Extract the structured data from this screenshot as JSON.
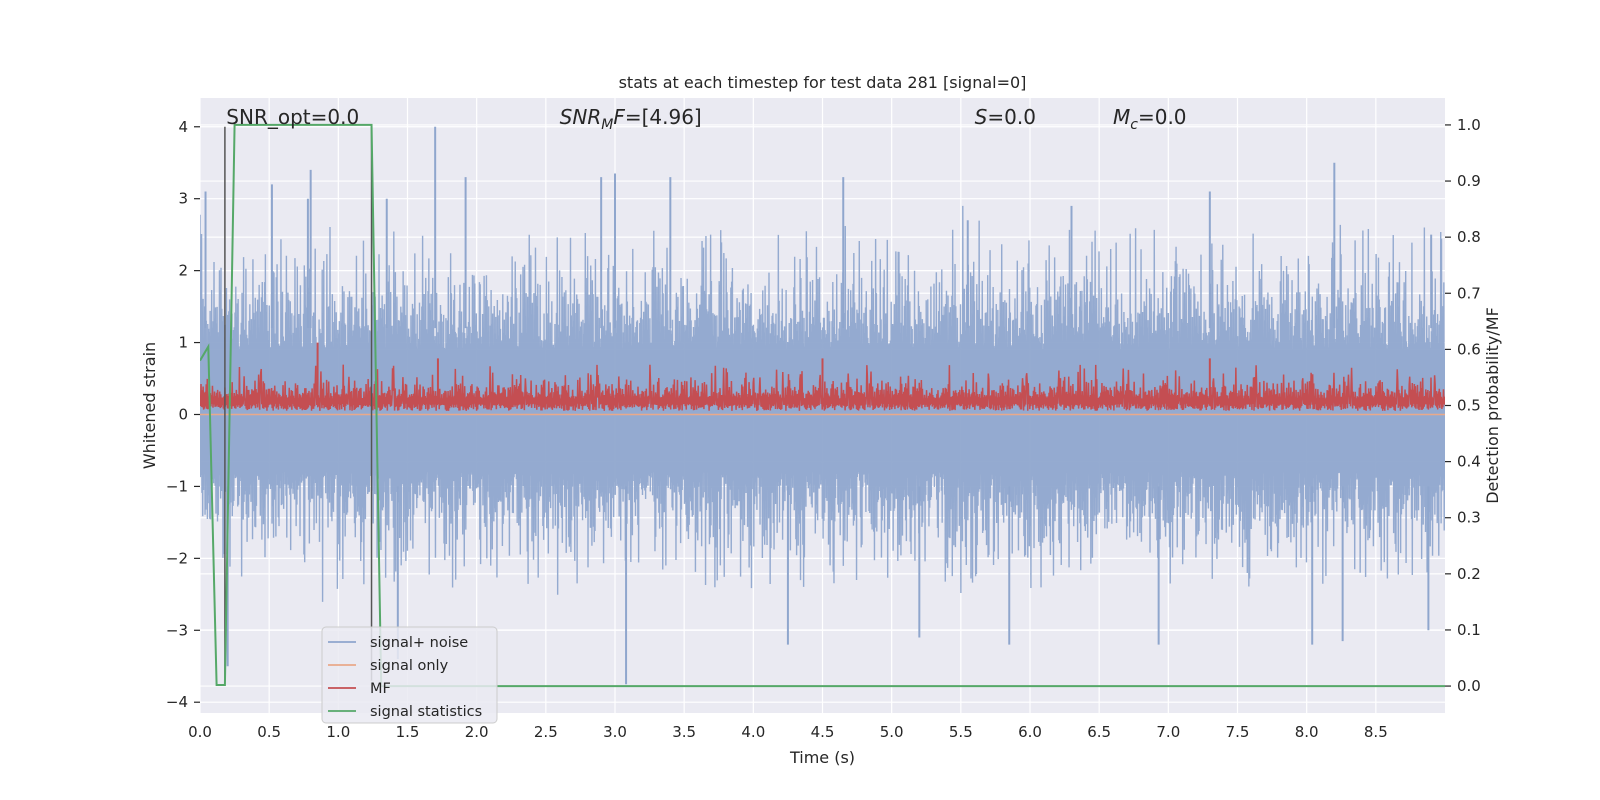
{
  "chart_data": {
    "type": "line",
    "title": "stats at each timestep for test data 281 [signal=0]",
    "xlabel": "Time (s)",
    "ylabel_left": "Whitened strain",
    "ylabel_right": "Detection probability/MF",
    "xlim": [
      0.0,
      9.0
    ],
    "ylim_left": [
      -4.15,
      4.4
    ],
    "ylim_right": [
      -0.048,
      1.048
    ],
    "x_ticks": [
      0.0,
      0.5,
      1.0,
      1.5,
      2.0,
      2.5,
      3.0,
      3.5,
      4.0,
      4.5,
      5.0,
      5.5,
      6.0,
      6.5,
      7.0,
      7.5,
      8.0,
      8.5
    ],
    "x_tick_labels": [
      "0.0",
      "0.5",
      "1.0",
      "1.5",
      "2.0",
      "2.5",
      "3.0",
      "3.5",
      "4.0",
      "4.5",
      "5.0",
      "5.5",
      "6.0",
      "6.5",
      "7.0",
      "7.5",
      "8.0",
      "8.5"
    ],
    "y_ticks_left": [
      -4,
      -3,
      -2,
      -1,
      0,
      1,
      2,
      3,
      4
    ],
    "y_tick_labels_left": [
      "−4",
      "−3",
      "−2",
      "−1",
      "0",
      "1",
      "2",
      "3",
      "4"
    ],
    "y_ticks_right": [
      0.0,
      0.1,
      0.2,
      0.3,
      0.4,
      0.5,
      0.6,
      0.7,
      0.8,
      0.9,
      1.0
    ],
    "y_tick_labels_right": [
      "0.0",
      "0.1",
      "0.2",
      "0.3",
      "0.4",
      "0.5",
      "0.6",
      "0.7",
      "0.8",
      "0.9",
      "1.0"
    ],
    "grid": true,
    "legend_position": "lower-left",
    "annotations": [
      {
        "text": "SNR_opt=0.0",
        "x": 0.19,
        "style": "normal"
      },
      {
        "text": "SNR_MF=[4.96]",
        "x": 2.6,
        "style": "subscript",
        "base": "SNR",
        "sub": "M",
        "rest": "F=[4.96]"
      },
      {
        "text": "S=0.0",
        "x": 5.6,
        "style": "italic-var",
        "base": "S",
        "rest": "=0.0"
      },
      {
        "text": "M_c=0.0",
        "x": 6.6,
        "style": "subscript",
        "base": "M",
        "sub": "c",
        "rest": "=0.0"
      }
    ],
    "series": [
      {
        "name": "signal+ noise",
        "color": "#8fa6cd",
        "axis": "left",
        "noise_envelope": {
          "x_start": 0.0,
          "x_end": 9.0,
          "dense_low": -1.45,
          "dense_high": 1.65,
          "typical_min": -2.3,
          "typical_max": 2.5
        },
        "peaks": [
          {
            "x": 0.04,
            "y": 3.1
          },
          {
            "x": 0.52,
            "y": 3.2
          },
          {
            "x": 0.78,
            "y": 3.0
          },
          {
            "x": 0.8,
            "y": 3.4
          },
          {
            "x": 1.35,
            "y": 3.0
          },
          {
            "x": 1.7,
            "y": 4.0
          },
          {
            "x": 1.92,
            "y": 3.3
          },
          {
            "x": 2.9,
            "y": 3.3
          },
          {
            "x": 3.0,
            "y": 3.35
          },
          {
            "x": 3.4,
            "y": 3.3
          },
          {
            "x": 4.65,
            "y": 3.3
          },
          {
            "x": 5.55,
            "y": 2.7
          },
          {
            "x": 6.3,
            "y": 2.9
          },
          {
            "x": 7.3,
            "y": 3.1
          },
          {
            "x": 8.2,
            "y": 3.5
          },
          {
            "x": 8.9,
            "y": 2.5
          },
          {
            "x": 0.2,
            "y": -3.5
          },
          {
            "x": 3.08,
            "y": -3.75
          },
          {
            "x": 1.43,
            "y": -3.4
          },
          {
            "x": 4.25,
            "y": -3.2
          },
          {
            "x": 5.2,
            "y": -3.1
          },
          {
            "x": 5.85,
            "y": -3.2
          },
          {
            "x": 6.93,
            "y": -3.2
          },
          {
            "x": 8.04,
            "y": -3.2
          },
          {
            "x": 8.26,
            "y": -3.15
          },
          {
            "x": 8.88,
            "y": -3.0
          }
        ]
      },
      {
        "name": "signal only",
        "color": "#e9a98a",
        "axis": "left",
        "x": [
          0.0,
          9.0
        ],
        "y": [
          0.0,
          0.0
        ]
      },
      {
        "name": "MF",
        "color": "#c44e52",
        "axis": "left",
        "band": {
          "x_start": 0.0,
          "x_end": 9.0,
          "low": 0.0,
          "typical_high": 0.55,
          "peak_high": 1.0
        },
        "peaks": [
          {
            "x": 0.85,
            "y": 1.0
          },
          {
            "x": 1.72,
            "y": 0.78
          },
          {
            "x": 4.5,
            "y": 0.78
          },
          {
            "x": 7.3,
            "y": 0.78
          }
        ]
      },
      {
        "name": "signal statistics",
        "color": "#55a868",
        "axis": "right",
        "x": [
          0.0,
          0.06,
          0.12,
          0.18,
          0.25,
          1.24,
          1.31,
          1.5,
          9.0
        ],
        "y": [
          0.58,
          0.605,
          0.002,
          0.002,
          1.0,
          1.0,
          0.0,
          0.0,
          0.0
        ]
      }
    ],
    "vertical_lines": [
      {
        "x": 0.18,
        "y_range": [
          -3.7,
          4.0
        ],
        "color": "#555555"
      },
      {
        "x": 1.24,
        "y_range": [
          -3.7,
          4.0
        ],
        "color": "#555555"
      }
    ]
  }
}
